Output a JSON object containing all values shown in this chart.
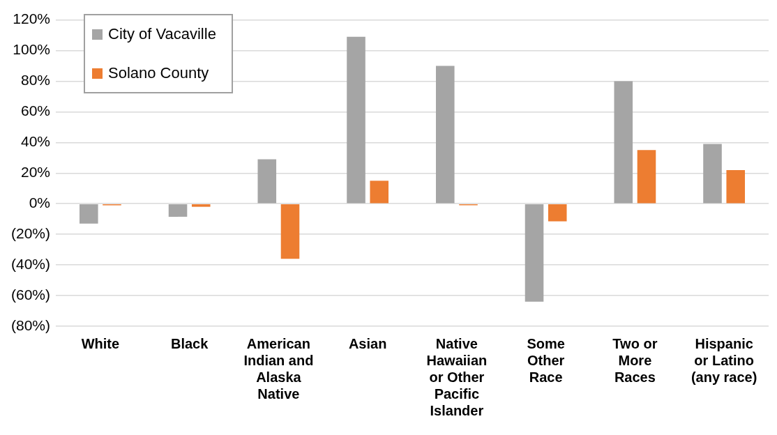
{
  "chart_data": {
    "type": "bar",
    "categories": [
      "White",
      "Black",
      "American Indian and Alaska Native",
      "Asian",
      "Native Hawaiian or Other Pacific Islander",
      "Some Other Race",
      "Two or More Races",
      "Hispanic or Latino (any race)"
    ],
    "series": [
      {
        "name": "City of Vacaville",
        "color": "#a5a5a5",
        "values": [
          -13,
          -8.5,
          29,
          109,
          90,
          -64,
          80,
          39
        ]
      },
      {
        "name": "Solano County",
        "color": "#ed7d31",
        "values": [
          -1,
          -2,
          -36,
          15,
          -1,
          -11.5,
          35,
          22
        ]
      }
    ],
    "ylim": [
      -80,
      120
    ],
    "yticks": [
      {
        "value": -80,
        "label": "(80%)"
      },
      {
        "value": -60,
        "label": "(60%)"
      },
      {
        "value": -40,
        "label": "(40%)"
      },
      {
        "value": -20,
        "label": "(20%)"
      },
      {
        "value": 0,
        "label": "0%"
      },
      {
        "value": 20,
        "label": "20%"
      },
      {
        "value": 40,
        "label": "40%"
      },
      {
        "value": 60,
        "label": "60%"
      },
      {
        "value": 80,
        "label": "80%"
      },
      {
        "value": 100,
        "label": "100%"
      },
      {
        "value": 120,
        "label": "120%"
      }
    ],
    "grid": "y",
    "legend": "top left"
  }
}
